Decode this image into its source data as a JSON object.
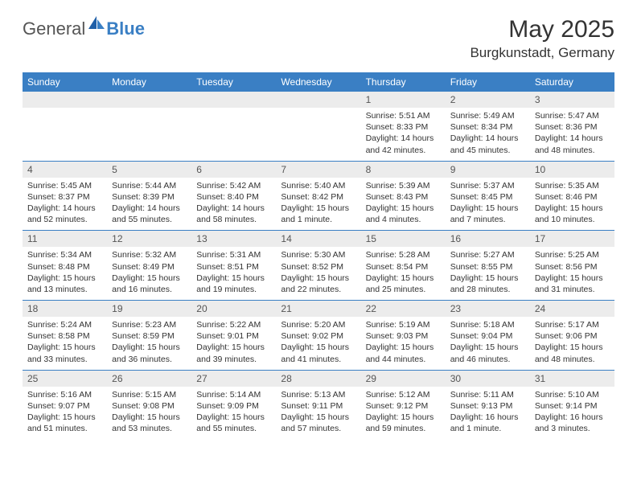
{
  "logo": {
    "general": "General",
    "blue": "Blue"
  },
  "title": "May 2025",
  "location": "Burgkunstadt, Germany",
  "colors": {
    "header_bg": "#3a7fc4",
    "header_text": "#ffffff",
    "daynum_bg": "#ececec",
    "daynum_text": "#555555",
    "body_text": "#333333",
    "page_bg": "#ffffff",
    "row_border": "#3a7fc4"
  },
  "typography": {
    "title_fontsize": 30,
    "location_fontsize": 17,
    "header_fontsize": 12,
    "daynum_fontsize": 12,
    "detail_fontsize": 10.5
  },
  "day_headers": [
    "Sunday",
    "Monday",
    "Tuesday",
    "Wednesday",
    "Thursday",
    "Friday",
    "Saturday"
  ],
  "weeks": [
    [
      {
        "num": "",
        "sunrise": "",
        "sunset": "",
        "daylight": ""
      },
      {
        "num": "",
        "sunrise": "",
        "sunset": "",
        "daylight": ""
      },
      {
        "num": "",
        "sunrise": "",
        "sunset": "",
        "daylight": ""
      },
      {
        "num": "",
        "sunrise": "",
        "sunset": "",
        "daylight": ""
      },
      {
        "num": "1",
        "sunrise": "Sunrise: 5:51 AM",
        "sunset": "Sunset: 8:33 PM",
        "daylight": "Daylight: 14 hours and 42 minutes."
      },
      {
        "num": "2",
        "sunrise": "Sunrise: 5:49 AM",
        "sunset": "Sunset: 8:34 PM",
        "daylight": "Daylight: 14 hours and 45 minutes."
      },
      {
        "num": "3",
        "sunrise": "Sunrise: 5:47 AM",
        "sunset": "Sunset: 8:36 PM",
        "daylight": "Daylight: 14 hours and 48 minutes."
      }
    ],
    [
      {
        "num": "4",
        "sunrise": "Sunrise: 5:45 AM",
        "sunset": "Sunset: 8:37 PM",
        "daylight": "Daylight: 14 hours and 52 minutes."
      },
      {
        "num": "5",
        "sunrise": "Sunrise: 5:44 AM",
        "sunset": "Sunset: 8:39 PM",
        "daylight": "Daylight: 14 hours and 55 minutes."
      },
      {
        "num": "6",
        "sunrise": "Sunrise: 5:42 AM",
        "sunset": "Sunset: 8:40 PM",
        "daylight": "Daylight: 14 hours and 58 minutes."
      },
      {
        "num": "7",
        "sunrise": "Sunrise: 5:40 AM",
        "sunset": "Sunset: 8:42 PM",
        "daylight": "Daylight: 15 hours and 1 minute."
      },
      {
        "num": "8",
        "sunrise": "Sunrise: 5:39 AM",
        "sunset": "Sunset: 8:43 PM",
        "daylight": "Daylight: 15 hours and 4 minutes."
      },
      {
        "num": "9",
        "sunrise": "Sunrise: 5:37 AM",
        "sunset": "Sunset: 8:45 PM",
        "daylight": "Daylight: 15 hours and 7 minutes."
      },
      {
        "num": "10",
        "sunrise": "Sunrise: 5:35 AM",
        "sunset": "Sunset: 8:46 PM",
        "daylight": "Daylight: 15 hours and 10 minutes."
      }
    ],
    [
      {
        "num": "11",
        "sunrise": "Sunrise: 5:34 AM",
        "sunset": "Sunset: 8:48 PM",
        "daylight": "Daylight: 15 hours and 13 minutes."
      },
      {
        "num": "12",
        "sunrise": "Sunrise: 5:32 AM",
        "sunset": "Sunset: 8:49 PM",
        "daylight": "Daylight: 15 hours and 16 minutes."
      },
      {
        "num": "13",
        "sunrise": "Sunrise: 5:31 AM",
        "sunset": "Sunset: 8:51 PM",
        "daylight": "Daylight: 15 hours and 19 minutes."
      },
      {
        "num": "14",
        "sunrise": "Sunrise: 5:30 AM",
        "sunset": "Sunset: 8:52 PM",
        "daylight": "Daylight: 15 hours and 22 minutes."
      },
      {
        "num": "15",
        "sunrise": "Sunrise: 5:28 AM",
        "sunset": "Sunset: 8:54 PM",
        "daylight": "Daylight: 15 hours and 25 minutes."
      },
      {
        "num": "16",
        "sunrise": "Sunrise: 5:27 AM",
        "sunset": "Sunset: 8:55 PM",
        "daylight": "Daylight: 15 hours and 28 minutes."
      },
      {
        "num": "17",
        "sunrise": "Sunrise: 5:25 AM",
        "sunset": "Sunset: 8:56 PM",
        "daylight": "Daylight: 15 hours and 31 minutes."
      }
    ],
    [
      {
        "num": "18",
        "sunrise": "Sunrise: 5:24 AM",
        "sunset": "Sunset: 8:58 PM",
        "daylight": "Daylight: 15 hours and 33 minutes."
      },
      {
        "num": "19",
        "sunrise": "Sunrise: 5:23 AM",
        "sunset": "Sunset: 8:59 PM",
        "daylight": "Daylight: 15 hours and 36 minutes."
      },
      {
        "num": "20",
        "sunrise": "Sunrise: 5:22 AM",
        "sunset": "Sunset: 9:01 PM",
        "daylight": "Daylight: 15 hours and 39 minutes."
      },
      {
        "num": "21",
        "sunrise": "Sunrise: 5:20 AM",
        "sunset": "Sunset: 9:02 PM",
        "daylight": "Daylight: 15 hours and 41 minutes."
      },
      {
        "num": "22",
        "sunrise": "Sunrise: 5:19 AM",
        "sunset": "Sunset: 9:03 PM",
        "daylight": "Daylight: 15 hours and 44 minutes."
      },
      {
        "num": "23",
        "sunrise": "Sunrise: 5:18 AM",
        "sunset": "Sunset: 9:04 PM",
        "daylight": "Daylight: 15 hours and 46 minutes."
      },
      {
        "num": "24",
        "sunrise": "Sunrise: 5:17 AM",
        "sunset": "Sunset: 9:06 PM",
        "daylight": "Daylight: 15 hours and 48 minutes."
      }
    ],
    [
      {
        "num": "25",
        "sunrise": "Sunrise: 5:16 AM",
        "sunset": "Sunset: 9:07 PM",
        "daylight": "Daylight: 15 hours and 51 minutes."
      },
      {
        "num": "26",
        "sunrise": "Sunrise: 5:15 AM",
        "sunset": "Sunset: 9:08 PM",
        "daylight": "Daylight: 15 hours and 53 minutes."
      },
      {
        "num": "27",
        "sunrise": "Sunrise: 5:14 AM",
        "sunset": "Sunset: 9:09 PM",
        "daylight": "Daylight: 15 hours and 55 minutes."
      },
      {
        "num": "28",
        "sunrise": "Sunrise: 5:13 AM",
        "sunset": "Sunset: 9:11 PM",
        "daylight": "Daylight: 15 hours and 57 minutes."
      },
      {
        "num": "29",
        "sunrise": "Sunrise: 5:12 AM",
        "sunset": "Sunset: 9:12 PM",
        "daylight": "Daylight: 15 hours and 59 minutes."
      },
      {
        "num": "30",
        "sunrise": "Sunrise: 5:11 AM",
        "sunset": "Sunset: 9:13 PM",
        "daylight": "Daylight: 16 hours and 1 minute."
      },
      {
        "num": "31",
        "sunrise": "Sunrise: 5:10 AM",
        "sunset": "Sunset: 9:14 PM",
        "daylight": "Daylight: 16 hours and 3 minutes."
      }
    ]
  ]
}
